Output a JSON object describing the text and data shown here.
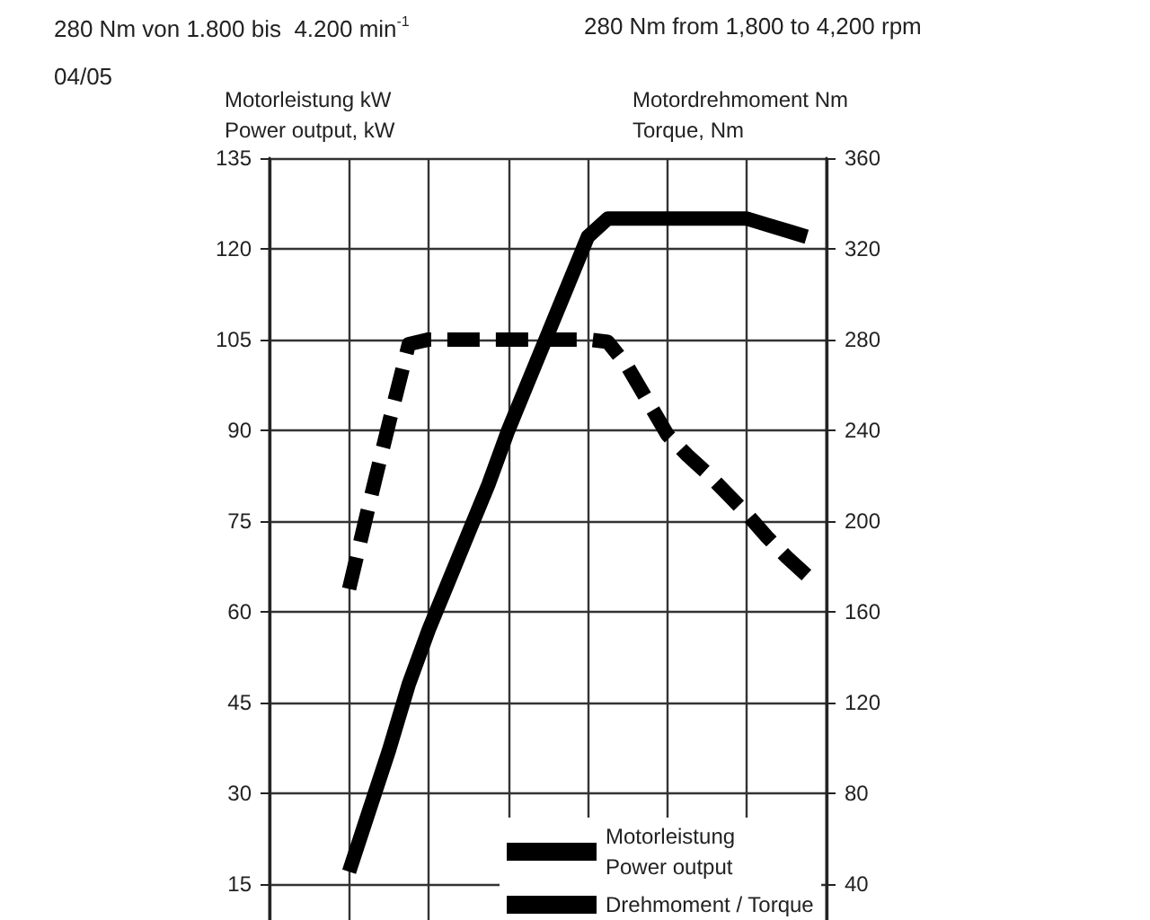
{
  "chart_data": {
    "type": "line",
    "ylabel": "Motorleistung kW\nPower output, kW",
    "y2label": "Motordrehmoment Nm\nTorque, Nm",
    "annotations": [
      "280 Nm von 1.800 bis  4.200 min$^{-1}$",
      "280 Nm from 1,800 to 4,200 rpm",
      "04/05"
    ],
    "categories": [
      null,
      null,
      null,
      null,
      null,
      null,
      null,
      null,
      null,
      null,
      null,
      null,
      null,
      null,
      null,
      null,
      null,
      null,
      null,
      null,
      null,
      null,
      null,
      null,
      null,
      null,
      null,
      null,
      null
    ],
    "series": [
      {
        "name": "Motorleistung\nPower output",
        "color": "#000000",
        "line_style": "solid",
        "values": [
          null,
          null,
          null,
          null,
          17,
          27,
          37,
          48,
          57,
          65,
          73,
          81,
          90,
          98,
          106,
          114,
          122,
          125,
          125,
          125,
          125,
          125,
          125,
          125,
          125,
          124,
          123,
          122,
          null
        ]
      },
      {
        "name": "Drehmoment / Torque",
        "color": "#000000",
        "line_style": "dashed",
        "axis": "y2",
        "values": [
          null,
          null,
          null,
          null,
          170,
          207,
          243,
          278,
          280,
          280,
          280,
          280,
          280,
          280,
          280,
          280,
          280,
          279,
          268,
          253,
          238,
          229,
          221,
          212,
          203,
          193,
          184,
          176,
          null
        ]
      }
    ],
    "ylim": [
      9,
      135
    ],
    "yticks": [
      15,
      30,
      45,
      60,
      75,
      90,
      105,
      120,
      135
    ],
    "y2lim": [
      24,
      360
    ],
    "y2ticks": [
      40,
      80,
      120,
      160,
      200,
      240,
      280,
      320,
      360
    ],
    "tick_labels": "y",
    "grid": true,
    "legend": "bottom right",
    "marker": "none"
  }
}
